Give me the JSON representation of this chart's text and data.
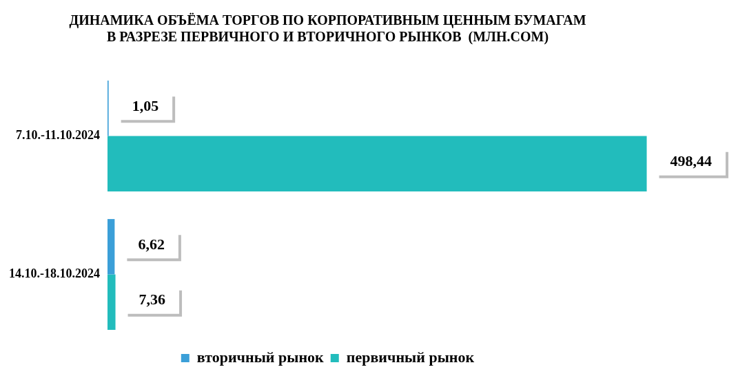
{
  "chart_data": {
    "type": "bar",
    "orientation": "horizontal",
    "title": "ДИНАМИКА ОБЪЁМА ТОРГОВ ПО КОРПОРАТИВНЫМ ЦЕННЫМ БУМАГАМ\nВ РАЗРЕЗЕ ПЕРВИЧНОГО И ВТОРИЧНОГО РЫНКОВ  (МЛН.СОМ)",
    "categories": [
      "7.10.-11.10.2024",
      "14.10.-18.10.2024"
    ],
    "series": [
      {
        "name": "вторичный рынок",
        "color": "#3b9fd8",
        "values": [
          1.05,
          6.62
        ],
        "value_labels": [
          "1,05",
          "6,62"
        ]
      },
      {
        "name": "первичный рынок",
        "color": "#22bcbc",
        "values": [
          498.44,
          7.36
        ],
        "value_labels": [
          "498,44",
          "7,36"
        ]
      }
    ],
    "legend": "bottom"
  }
}
